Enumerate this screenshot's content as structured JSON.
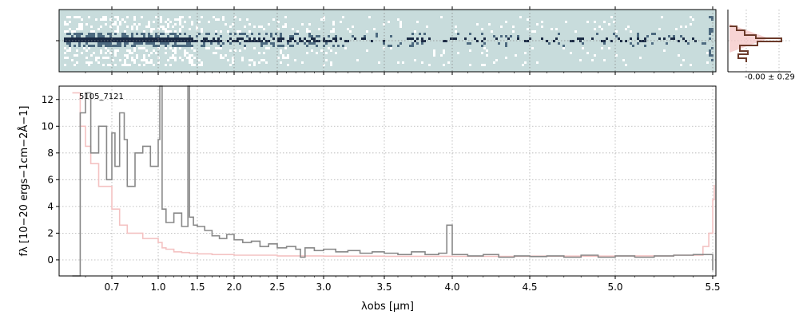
{
  "chart_data": [
    {
      "panel": "spectrum-2d",
      "type": "heatmap",
      "colormap": [
        "#1a2a44",
        "#4d6a80",
        "#c8dcdc",
        "#ffffff"
      ],
      "background": "#c8dcdc"
    },
    {
      "panel": "spectrum-1d",
      "type": "line",
      "annotation": "5105_7121",
      "xlabel": "λobs [μm]",
      "ylabel": "fλ [10−20 ergs−1cm−2Å−1]",
      "xlim": [
        0.5,
        5.52
      ],
      "ylim": [
        -1.2,
        13
      ],
      "x_scale": "stretched-reciprocal",
      "grid": true,
      "x_ticks": [
        0.7,
        1.0,
        1.5,
        2.0,
        2.5,
        3.0,
        3.5,
        4.0,
        4.5,
        5.0,
        5.5
      ],
      "x_tick_labels": [
        "0.7",
        "1.0",
        "1.5",
        "2.0",
        "2.5",
        "3.0",
        "3.5",
        "4.0",
        "4.5",
        "5.0",
        "5.5"
      ],
      "y_ticks": [
        0,
        2,
        4,
        6,
        8,
        10,
        12
      ],
      "y_tick_labels": [
        "0",
        "2",
        "4",
        "6",
        "8",
        "10",
        "12"
      ],
      "series": [
        {
          "role": "flux",
          "color": "#888888",
          "x": [
            0.55,
            0.58,
            0.6,
            0.62,
            0.65,
            0.68,
            0.7,
            0.72,
            0.75,
            0.78,
            0.8,
            0.85,
            0.9,
            0.95,
            1.0,
            1.02,
            1.05,
            1.1,
            1.2,
            1.3,
            1.38,
            1.4,
            1.45,
            1.5,
            1.6,
            1.7,
            1.8,
            1.9,
            2.0,
            2.1,
            2.2,
            2.3,
            2.4,
            2.5,
            2.6,
            2.7,
            2.75,
            2.8,
            2.9,
            3.0,
            3.1,
            3.2,
            3.3,
            3.4,
            3.5,
            3.6,
            3.7,
            3.8,
            3.9,
            3.96,
            4.0,
            4.1,
            4.2,
            4.3,
            4.4,
            4.5,
            4.6,
            4.7,
            4.8,
            4.9,
            5.0,
            5.1,
            5.2,
            5.3,
            5.4,
            5.5
          ],
          "y": [
            -1.2,
            11,
            12.5,
            8,
            10,
            6,
            9.5,
            7,
            11,
            9,
            5.5,
            8,
            8.5,
            7,
            9,
            13,
            3.8,
            2.8,
            3.5,
            2.5,
            13,
            3.2,
            2.6,
            2.5,
            2.2,
            1.8,
            1.6,
            1.9,
            1.5,
            1.3,
            1.4,
            1.0,
            1.2,
            0.9,
            1.0,
            0.8,
            0.2,
            0.9,
            0.7,
            0.8,
            0.6,
            0.7,
            0.5,
            0.6,
            0.5,
            0.4,
            0.6,
            0.4,
            0.5,
            2.6,
            0.4,
            0.3,
            0.4,
            0.2,
            0.3,
            0.25,
            0.3,
            0.2,
            0.35,
            0.2,
            0.3,
            0.2,
            0.3,
            0.35,
            0.4,
            -0.8
          ]
        },
        {
          "role": "uncertainty",
          "color": "#f4c2c2",
          "x": [
            0.55,
            0.58,
            0.6,
            0.62,
            0.65,
            0.7,
            0.75,
            0.8,
            0.9,
            1.0,
            1.05,
            1.1,
            1.2,
            1.3,
            1.4,
            1.5,
            1.7,
            2.0,
            2.5,
            3.0,
            3.5,
            4.0,
            4.5,
            5.0,
            5.3,
            5.45,
            5.48,
            5.5,
            5.51
          ],
          "y": [
            12.5,
            10,
            8.5,
            7.2,
            5.5,
            3.8,
            2.6,
            2.0,
            1.6,
            1.3,
            0.9,
            0.8,
            0.6,
            0.55,
            0.5,
            0.45,
            0.4,
            0.35,
            0.3,
            0.28,
            0.27,
            0.26,
            0.28,
            0.3,
            0.35,
            1.0,
            2.0,
            4.5,
            5.6
          ]
        }
      ]
    },
    {
      "panel": "profile",
      "type": "line",
      "annotation": "-0.00 ± 0.29",
      "colors": [
        "#6b3a2a",
        "#f4c2c2"
      ]
    }
  ]
}
